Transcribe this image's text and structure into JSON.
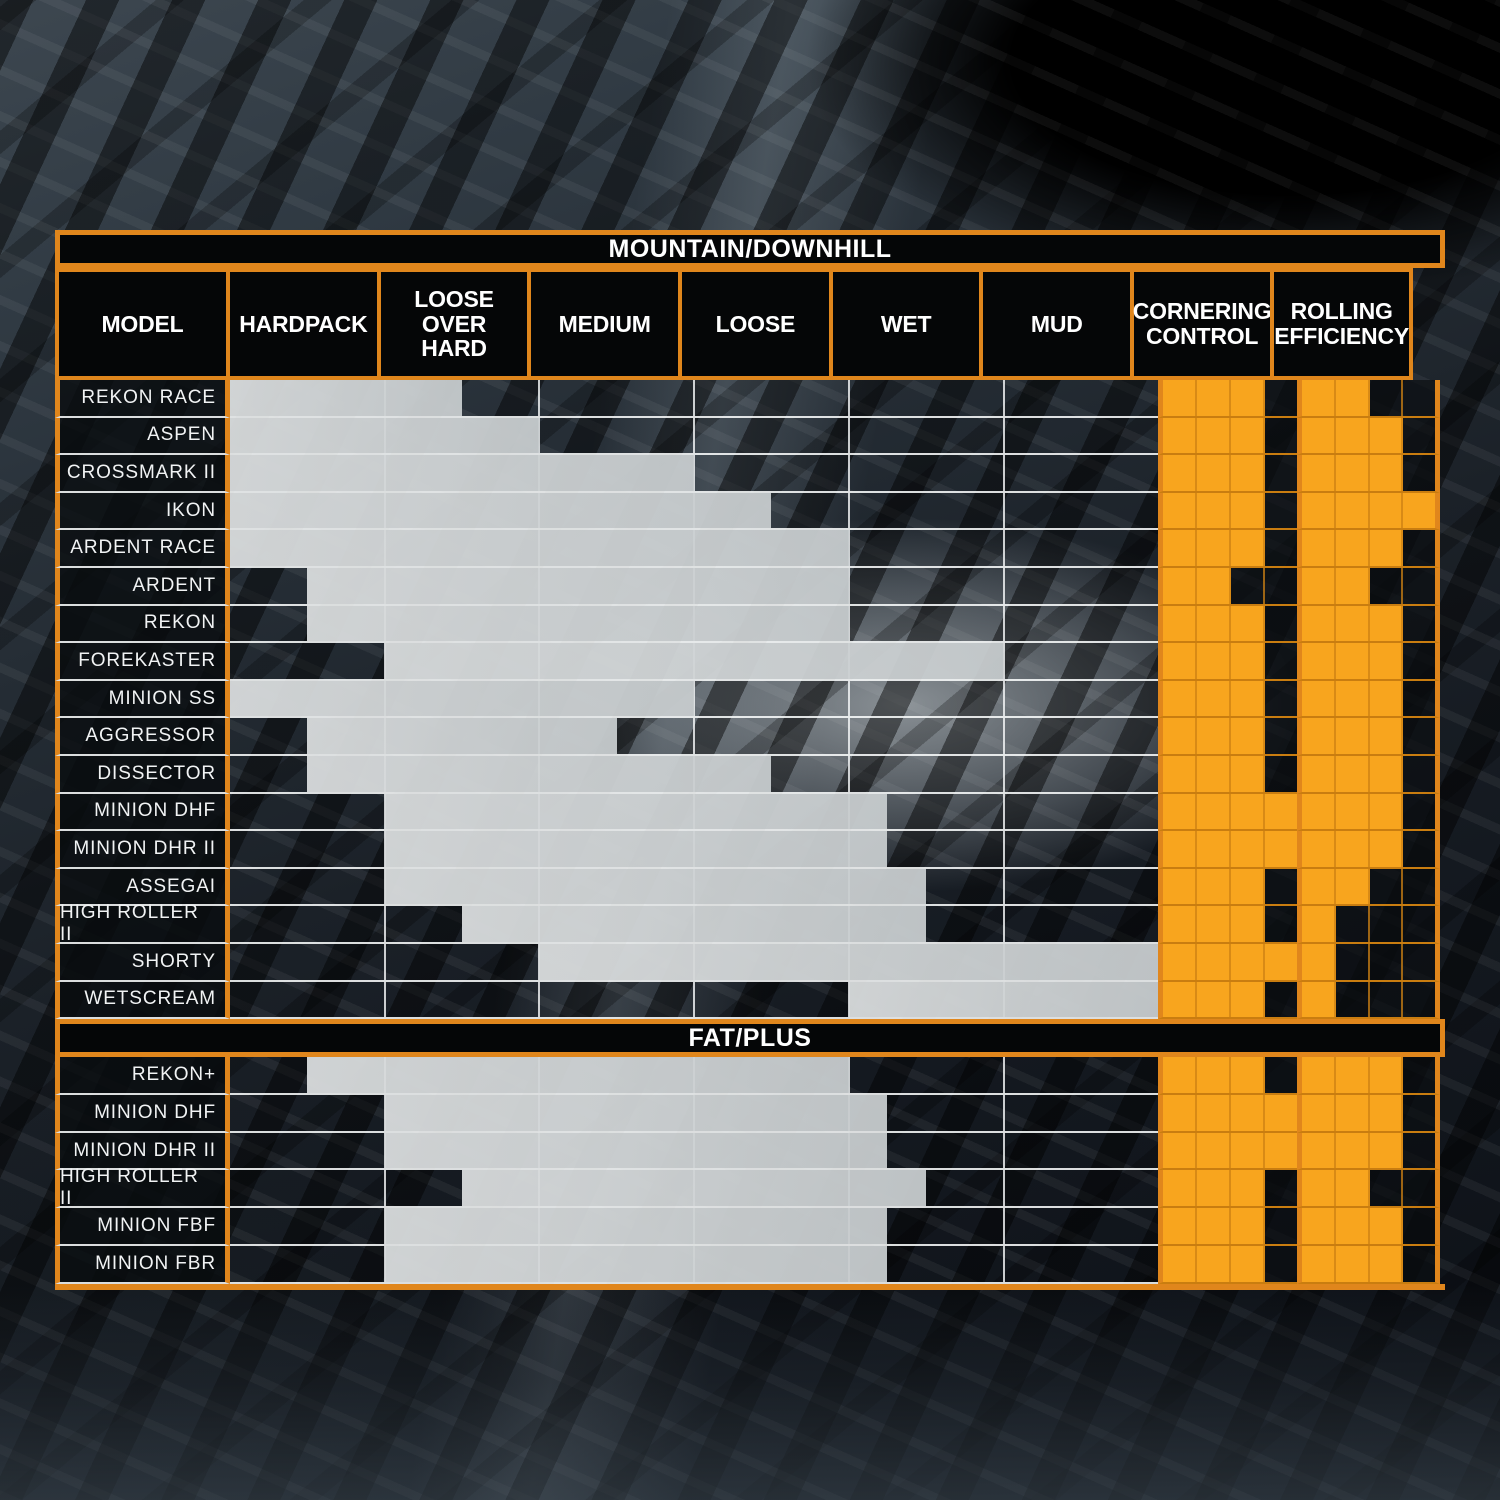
{
  "chart_data": {
    "type": "table",
    "description": "Tire terrain-suitability chart: horizontal bars show terrain range per tire model; orange cell bars show ratings out of 4.",
    "columns": [
      "MODEL",
      "HARDPACK",
      "LOOSE OVER HARD",
      "MEDIUM",
      "LOOSE",
      "WET",
      "MUD",
      "CORNERING CONTROL",
      "ROLLING EFFICIENCY"
    ],
    "terrain_categories": [
      "HARDPACK",
      "LOOSE OVER HARD",
      "MEDIUM",
      "LOOSE",
      "WET",
      "MUD"
    ],
    "terrain_axis_units": "column index, 0 = start of HARDPACK, 6 = end of MUD",
    "rating_scale_max": 4,
    "sections": [
      {
        "title": "MOUNTAIN/DOWNHILL",
        "has_column_header": true,
        "rows": [
          {
            "model": "REKON RACE",
            "terrain_range": [
              0,
              1.5
            ],
            "cornering_control": 3,
            "rolling_efficiency": 2
          },
          {
            "model": "ASPEN",
            "terrain_range": [
              0,
              2
            ],
            "cornering_control": 3,
            "rolling_efficiency": 3
          },
          {
            "model": "CROSSMARK II",
            "terrain_range": [
              0,
              3
            ],
            "cornering_control": 3,
            "rolling_efficiency": 3
          },
          {
            "model": "IKON",
            "terrain_range": [
              0,
              3.5
            ],
            "cornering_control": 3,
            "rolling_efficiency": 4
          },
          {
            "model": "ARDENT RACE",
            "terrain_range": [
              0,
              4
            ],
            "cornering_control": 3,
            "rolling_efficiency": 3
          },
          {
            "model": "ARDENT",
            "terrain_range": [
              0.5,
              4
            ],
            "cornering_control": 2,
            "rolling_efficiency": 2
          },
          {
            "model": "REKON",
            "terrain_range": [
              0.5,
              4
            ],
            "cornering_control": 3,
            "rolling_efficiency": 3
          },
          {
            "model": "FOREKASTER",
            "terrain_range": [
              1,
              5
            ],
            "cornering_control": 3,
            "rolling_efficiency": 3
          },
          {
            "model": "MINION SS",
            "terrain_range": [
              0,
              3
            ],
            "cornering_control": 3,
            "rolling_efficiency": 3
          },
          {
            "model": "AGGRESSOR",
            "terrain_range": [
              0.5,
              2.5
            ],
            "cornering_control": 3,
            "rolling_efficiency": 3
          },
          {
            "model": "DISSECTOR",
            "terrain_range": [
              0.5,
              3.5
            ],
            "cornering_control": 3,
            "rolling_efficiency": 3
          },
          {
            "model": "MINION DHF",
            "terrain_range": [
              1,
              4.25
            ],
            "cornering_control": 4,
            "rolling_efficiency": 3
          },
          {
            "model": "MINION DHR II",
            "terrain_range": [
              1,
              4.25
            ],
            "cornering_control": 4,
            "rolling_efficiency": 3
          },
          {
            "model": "ASSEGAI",
            "terrain_range": [
              1,
              4.5
            ],
            "cornering_control": 3,
            "rolling_efficiency": 2
          },
          {
            "model": "HIGH ROLLER II",
            "terrain_range": [
              1.5,
              4.5
            ],
            "cornering_control": 3,
            "rolling_efficiency": 1
          },
          {
            "model": "SHORTY",
            "terrain_range": [
              2,
              6
            ],
            "cornering_control": 4,
            "rolling_efficiency": 1
          },
          {
            "model": "WETSCREAM",
            "terrain_range": [
              4,
              6
            ],
            "cornering_control": 3,
            "rolling_efficiency": 1
          }
        ]
      },
      {
        "title": "FAT/PLUS",
        "has_column_header": false,
        "rows": [
          {
            "model": "REKON+",
            "terrain_range": [
              0.5,
              4
            ],
            "cornering_control": 3,
            "rolling_efficiency": 3
          },
          {
            "model": "MINION DHF",
            "terrain_range": [
              1,
              4.25
            ],
            "cornering_control": 4,
            "rolling_efficiency": 3
          },
          {
            "model": "MINION DHR II",
            "terrain_range": [
              1,
              4.25
            ],
            "cornering_control": 4,
            "rolling_efficiency": 3
          },
          {
            "model": "HIGH ROLLER II",
            "terrain_range": [
              1.5,
              4.5
            ],
            "cornering_control": 3,
            "rolling_efficiency": 2
          },
          {
            "model": "MINION FBF",
            "terrain_range": [
              1,
              4.25
            ],
            "cornering_control": 3,
            "rolling_efficiency": 3
          },
          {
            "model": "MINION FBR",
            "terrain_range": [
              1,
              4.25
            ],
            "cornering_control": 3,
            "rolling_efficiency": 3
          }
        ]
      }
    ]
  },
  "colors": {
    "orange_border": "#e0861c",
    "orange_rating_cell": "#f8a51e",
    "bar_fill": "#ced2d4",
    "table_black": "#050607",
    "grid_line_white": "#f8fafb"
  }
}
